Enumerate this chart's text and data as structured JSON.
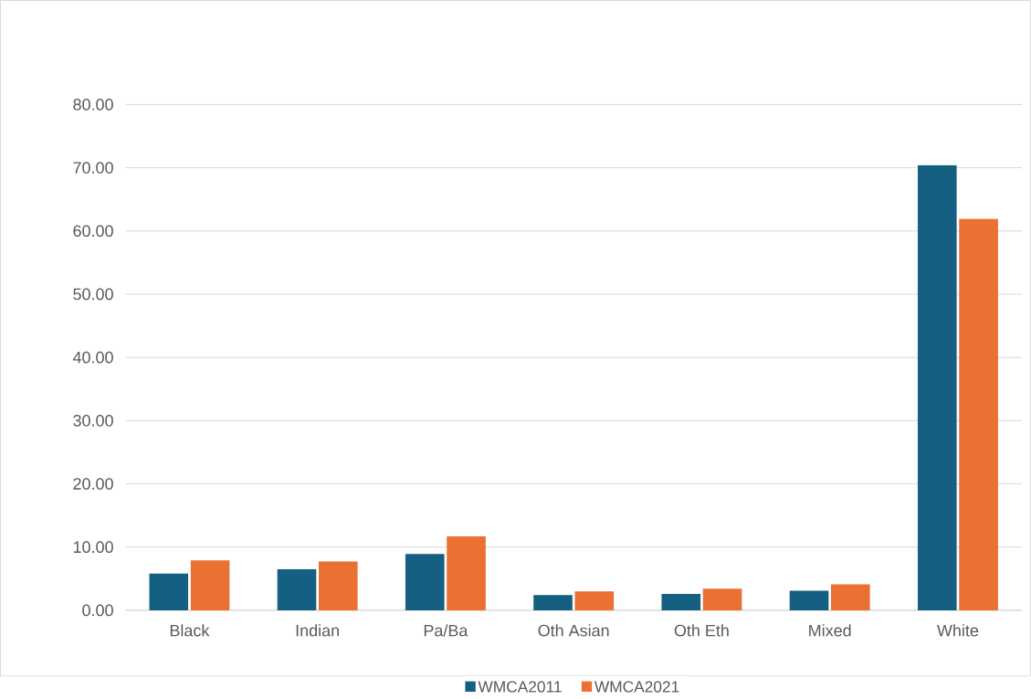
{
  "chart_data": {
    "type": "bar",
    "categories": [
      "Black",
      "Indian",
      "Pa/Ba",
      "Oth Asian",
      "Oth Eth",
      "Mixed",
      "White"
    ],
    "series": [
      {
        "name": "WMCA2011",
        "color": "#156082",
        "values": [
          5.8,
          6.5,
          8.9,
          2.4,
          2.6,
          3.1,
          70.4
        ]
      },
      {
        "name": "WMCA2021",
        "color": "#e97132",
        "values": [
          7.9,
          7.7,
          11.7,
          3.0,
          3.4,
          4.1,
          61.9
        ]
      }
    ],
    "ylim": [
      0,
      80
    ],
    "yticks": [
      {
        "value": 0,
        "label": "0.00"
      },
      {
        "value": 10,
        "label": "10.00"
      },
      {
        "value": 20,
        "label": "20.00"
      },
      {
        "value": 30,
        "label": "30.00"
      },
      {
        "value": 40,
        "label": "40.00"
      },
      {
        "value": 50,
        "label": "50.00"
      },
      {
        "value": 60,
        "label": "60.00"
      },
      {
        "value": 70,
        "label": "70.00"
      },
      {
        "value": 80,
        "label": "80.00"
      }
    ],
    "grid": "y",
    "legend": "bottom"
  }
}
